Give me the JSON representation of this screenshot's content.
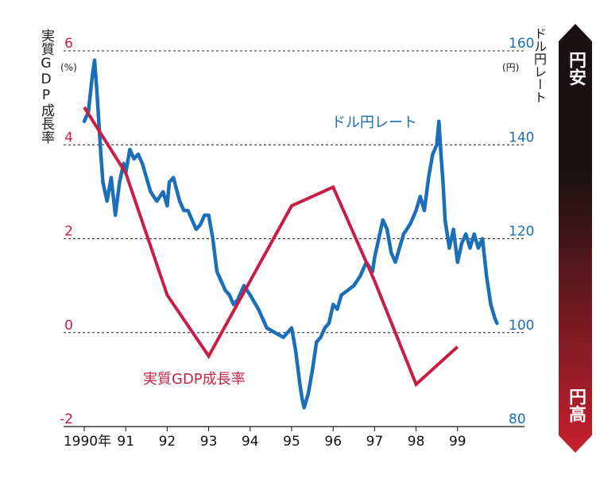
{
  "titles": {
    "gdp_axis": "実質GDP成長率",
    "rate_axis": "ドル円レート",
    "gdp_unit": "(%)",
    "rate_unit": "(円)"
  },
  "scale_bar": {
    "top_label": "円安",
    "bottom_label": "円高",
    "top_color": "#1a1212",
    "bottom_color": "#c8202e"
  },
  "chart_data": [
    {
      "type": "line",
      "series_label": "実質GDP成長率",
      "color": "#c81e44",
      "axis": "left",
      "ylim": [
        -2,
        6
      ],
      "y_ticks": [
        "6",
        "4",
        "2",
        "0",
        "-2"
      ],
      "x": [
        1990,
        1991,
        1992,
        1993,
        1994,
        1995,
        1996,
        1997,
        1998,
        1999
      ],
      "values": [
        4.8,
        3.4,
        0.8,
        -0.5,
        1.1,
        2.7,
        3.1,
        1.1,
        -1.1,
        -0.3
      ]
    },
    {
      "type": "line",
      "series_label": "ドル円レート",
      "color": "#1a6fb8",
      "axis": "right",
      "ylim": [
        80,
        160
      ],
      "y_ticks": [
        "160",
        "140",
        "120",
        "100",
        "80"
      ],
      "x": [
        1990.0,
        1990.1,
        1990.2,
        1990.25,
        1990.3,
        1990.35,
        1990.4,
        1990.45,
        1990.55,
        1990.65,
        1990.75,
        1990.85,
        1990.95,
        1991.0,
        1991.1,
        1991.2,
        1991.3,
        1991.4,
        1991.5,
        1991.6,
        1991.75,
        1991.9,
        1992.0,
        1992.05,
        1992.15,
        1992.3,
        1992.4,
        1992.5,
        1992.6,
        1992.7,
        1992.8,
        1992.9,
        1993.0,
        1993.1,
        1993.2,
        1993.3,
        1993.4,
        1993.5,
        1993.6,
        1993.7,
        1993.85,
        1994.0,
        1994.2,
        1994.4,
        1994.6,
        1994.8,
        1995.0,
        1995.1,
        1995.2,
        1995.25,
        1995.3,
        1995.4,
        1995.5,
        1995.6,
        1995.7,
        1995.8,
        1995.9,
        1996.0,
        1996.1,
        1996.2,
        1996.35,
        1996.5,
        1996.65,
        1996.8,
        1996.95,
        1997.0,
        1997.1,
        1997.2,
        1997.3,
        1997.4,
        1997.5,
        1997.6,
        1997.7,
        1997.85,
        1998.0,
        1998.1,
        1998.2,
        1998.3,
        1998.4,
        1998.5,
        1998.55,
        1998.6,
        1998.65,
        1998.7,
        1998.8,
        1998.9,
        1999.0,
        1999.1,
        1999.2,
        1999.3,
        1999.4,
        1999.5,
        1999.6,
        1999.7,
        1999.8,
        1999.9,
        1999.95
      ],
      "values": [
        145,
        147,
        155,
        158,
        152,
        145,
        138,
        132,
        128,
        133,
        125,
        132,
        136,
        134,
        139,
        137,
        138,
        136,
        133,
        130,
        128,
        130,
        127,
        132,
        133,
        128,
        126,
        126,
        124,
        122,
        123,
        125,
        125,
        120,
        113,
        111,
        109,
        108,
        106,
        107,
        110,
        108,
        105,
        101,
        100,
        99,
        101,
        96,
        89,
        86,
        84,
        87,
        92,
        98,
        99,
        101,
        102,
        106,
        105,
        108,
        109,
        110,
        112,
        115,
        113,
        116,
        120,
        124,
        122,
        117,
        115,
        118,
        121,
        123,
        126,
        129,
        126,
        133,
        138,
        140,
        145,
        138,
        132,
        124,
        118,
        122,
        115,
        119,
        121,
        118,
        121,
        118,
        120,
        112,
        106,
        103,
        102
      ]
    }
  ],
  "x_ticks": [
    "1990年",
    "91",
    "92",
    "93",
    "94",
    "95",
    "96",
    "97",
    "98",
    "99"
  ]
}
